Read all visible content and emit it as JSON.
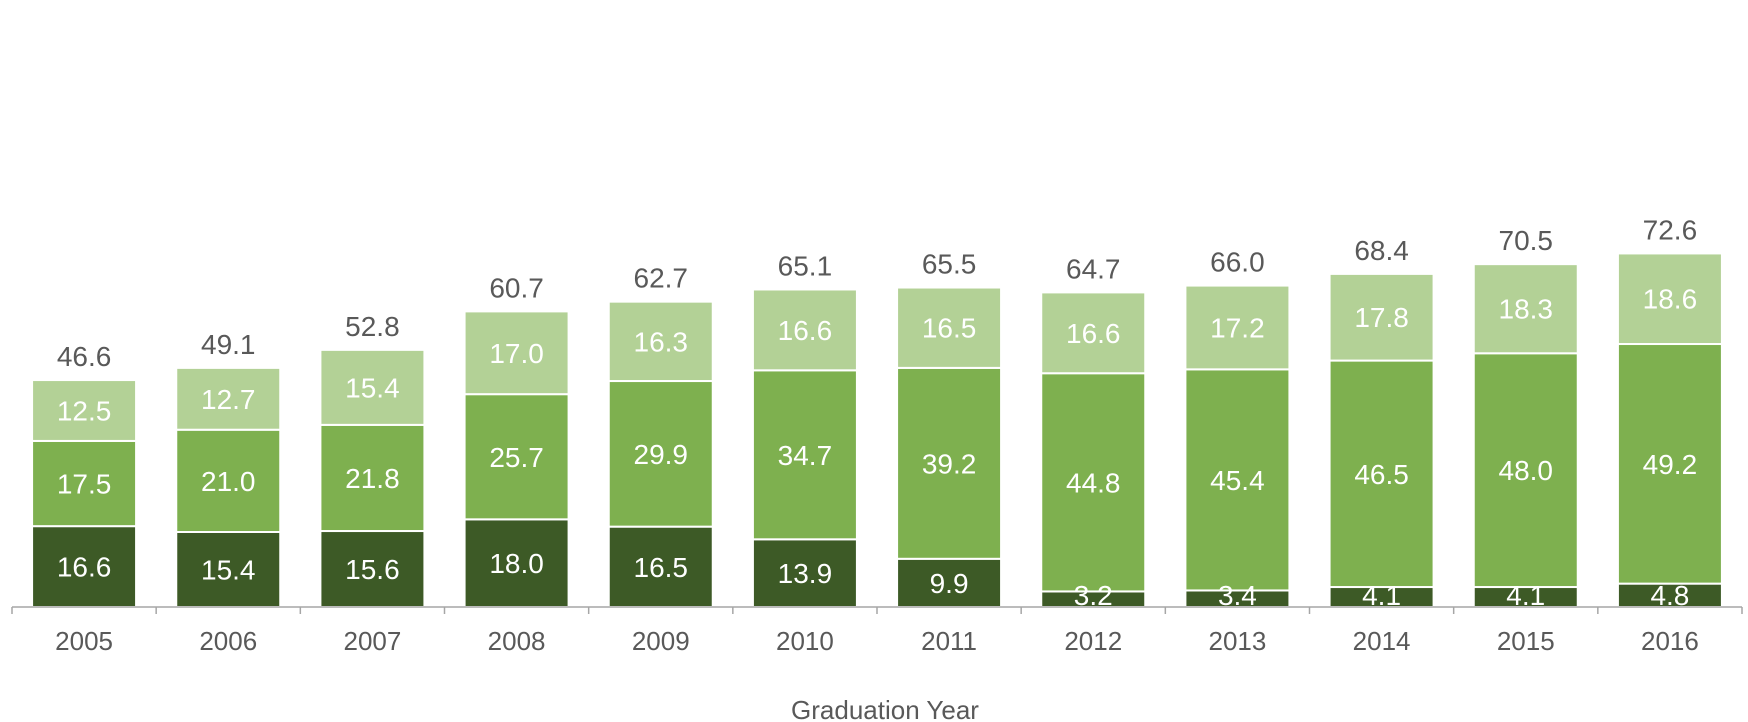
{
  "chart_data": {
    "type": "bar",
    "stacked": true,
    "xlabel": "Graduation Year",
    "ylabel": "",
    "ylim": [
      0,
      80
    ],
    "grid": false,
    "legend": "none",
    "categories": [
      "2005",
      "2006",
      "2007",
      "2008",
      "2009",
      "2010",
      "2011",
      "2012",
      "2013",
      "2014",
      "2015",
      "2016"
    ],
    "series": [
      {
        "color": "#3d5a26",
        "values": [
          16.6,
          15.4,
          15.6,
          18.0,
          16.5,
          13.9,
          9.9,
          3.2,
          3.4,
          4.1,
          4.1,
          4.8
        ]
      },
      {
        "color": "#7eb04f",
        "values": [
          17.5,
          21.0,
          21.8,
          25.7,
          29.9,
          34.7,
          39.2,
          44.8,
          45.4,
          46.5,
          48.0,
          49.2
        ]
      },
      {
        "color": "#b3d196",
        "values": [
          12.5,
          12.7,
          15.4,
          17.0,
          16.3,
          16.6,
          16.5,
          16.6,
          17.2,
          17.8,
          18.3,
          18.6
        ]
      }
    ],
    "totals": [
      46.6,
      49.1,
      52.8,
      60.7,
      62.7,
      65.1,
      65.5,
      64.7,
      66.0,
      68.4,
      70.5,
      72.6
    ]
  },
  "colors": {
    "segment_text": "#ffffff",
    "muted_text": "#595959",
    "axis_line": "#a6a6a6",
    "bar_outline": "#ffffff"
  }
}
